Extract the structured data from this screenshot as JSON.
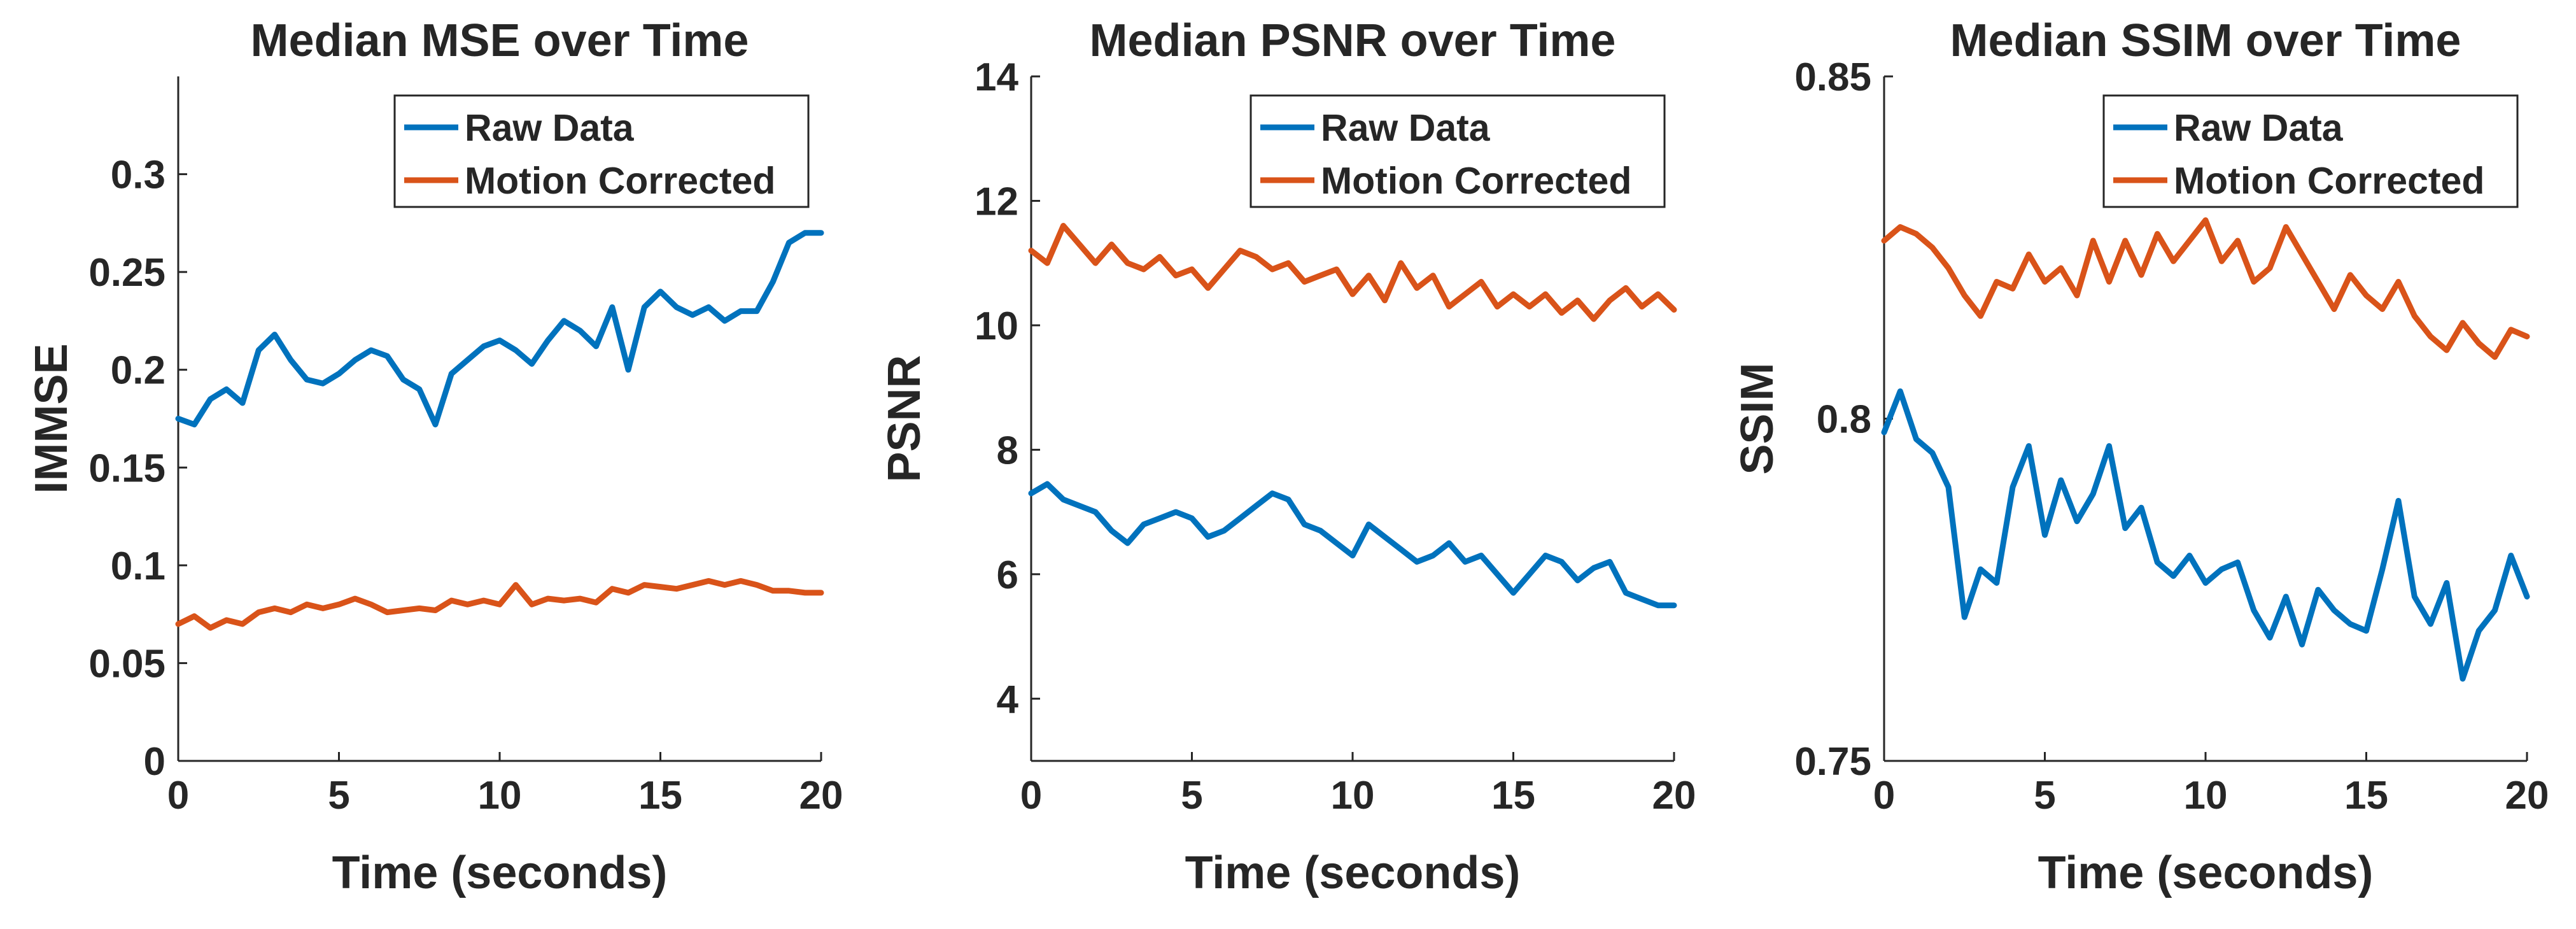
{
  "chart_data": [
    {
      "type": "line",
      "title": "Median MSE over Time",
      "xlabel": "Time (seconds)",
      "ylabel": "IMMSE",
      "xlim": [
        0,
        20
      ],
      "ylim": [
        0,
        0.35
      ],
      "xticks": [
        0,
        5,
        10,
        15,
        20
      ],
      "yticks": [
        0,
        0.05,
        0.1,
        0.15,
        0.2,
        0.25,
        0.3
      ],
      "ytick_labels": [
        "0",
        "0.05",
        "0.1",
        "0.15",
        "0.2",
        "0.25",
        "0.3"
      ],
      "legend": "top-right",
      "series": [
        {
          "name": "Raw Data",
          "color": "#0072BD",
          "x": [
            0,
            0.5,
            1,
            1.5,
            2,
            2.5,
            3,
            3.5,
            4,
            4.5,
            5,
            5.5,
            6,
            6.5,
            7,
            7.5,
            8,
            8.5,
            9,
            9.5,
            10,
            10.5,
            11,
            11.5,
            12,
            12.5,
            13,
            13.5,
            14,
            14.5,
            15,
            15.5,
            16,
            16.5,
            17,
            17.5,
            18,
            18.5,
            19,
            19.5,
            20
          ],
          "values": [
            0.175,
            0.172,
            0.185,
            0.19,
            0.183,
            0.21,
            0.218,
            0.205,
            0.195,
            0.193,
            0.198,
            0.205,
            0.21,
            0.207,
            0.195,
            0.19,
            0.172,
            0.198,
            0.205,
            0.212,
            0.215,
            0.21,
            0.203,
            0.215,
            0.225,
            0.22,
            0.212,
            0.232,
            0.2,
            0.232,
            0.24,
            0.232,
            0.228,
            0.232,
            0.225,
            0.23,
            0.23,
            0.245,
            0.265,
            0.27,
            0.27
          ]
        },
        {
          "name": "Motion Corrected",
          "color": "#D95319",
          "x": [
            0,
            0.5,
            1,
            1.5,
            2,
            2.5,
            3,
            3.5,
            4,
            4.5,
            5,
            5.5,
            6,
            6.5,
            7,
            7.5,
            8,
            8.5,
            9,
            9.5,
            10,
            10.5,
            11,
            11.5,
            12,
            12.5,
            13,
            13.5,
            14,
            14.5,
            15,
            15.5,
            16,
            16.5,
            17,
            17.5,
            18,
            18.5,
            19,
            19.5,
            20
          ],
          "values": [
            0.07,
            0.074,
            0.068,
            0.072,
            0.07,
            0.076,
            0.078,
            0.076,
            0.08,
            0.078,
            0.08,
            0.083,
            0.08,
            0.076,
            0.077,
            0.078,
            0.077,
            0.082,
            0.08,
            0.082,
            0.08,
            0.09,
            0.08,
            0.083,
            0.082,
            0.083,
            0.081,
            0.088,
            0.086,
            0.09,
            0.089,
            0.088,
            0.09,
            0.092,
            0.09,
            0.092,
            0.09,
            0.087,
            0.087,
            0.086,
            0.086
          ]
        }
      ]
    },
    {
      "type": "line",
      "title": "Median PSNR over Time",
      "xlabel": "Time (seconds)",
      "ylabel": "PSNR",
      "xlim": [
        0,
        20
      ],
      "ylim": [
        3,
        14
      ],
      "xticks": [
        0,
        5,
        10,
        15,
        20
      ],
      "yticks": [
        4,
        6,
        8,
        10,
        12,
        14
      ],
      "ytick_labels": [
        "4",
        "6",
        "8",
        "10",
        "12",
        "14"
      ],
      "legend": "top-right",
      "series": [
        {
          "name": "Raw Data",
          "color": "#0072BD",
          "x": [
            0,
            0.5,
            1,
            1.5,
            2,
            2.5,
            3,
            3.5,
            4,
            4.5,
            5,
            5.5,
            6,
            6.5,
            7,
            7.5,
            8,
            8.5,
            9,
            9.5,
            10,
            10.5,
            11,
            11.5,
            12,
            12.5,
            13,
            13.5,
            14,
            14.5,
            15,
            15.5,
            16,
            16.5,
            17,
            17.5,
            18,
            18.5,
            19,
            19.5,
            20
          ],
          "values": [
            7.3,
            7.45,
            7.2,
            7.1,
            7.0,
            6.7,
            6.5,
            6.8,
            6.9,
            7.0,
            6.9,
            6.6,
            6.7,
            6.9,
            7.1,
            7.3,
            7.2,
            6.8,
            6.7,
            6.5,
            6.3,
            6.8,
            6.6,
            6.4,
            6.2,
            6.3,
            6.5,
            6.2,
            6.3,
            6.0,
            5.7,
            6.0,
            6.3,
            6.2,
            5.9,
            6.1,
            6.2,
            5.7,
            5.6,
            5.5,
            5.5
          ]
        },
        {
          "name": "Motion Corrected",
          "color": "#D95319",
          "x": [
            0,
            0.5,
            1,
            1.5,
            2,
            2.5,
            3,
            3.5,
            4,
            4.5,
            5,
            5.5,
            6,
            6.5,
            7,
            7.5,
            8,
            8.5,
            9,
            9.5,
            10,
            10.5,
            11,
            11.5,
            12,
            12.5,
            13,
            13.5,
            14,
            14.5,
            15,
            15.5,
            16,
            16.5,
            17,
            17.5,
            18,
            18.5,
            19,
            19.5,
            20
          ],
          "values": [
            11.2,
            11.0,
            11.6,
            11.3,
            11.0,
            11.3,
            11.0,
            10.9,
            11.1,
            10.8,
            10.9,
            10.6,
            10.9,
            11.2,
            11.1,
            10.9,
            11.0,
            10.7,
            10.8,
            10.9,
            10.5,
            10.8,
            10.4,
            11.0,
            10.6,
            10.8,
            10.3,
            10.5,
            10.7,
            10.3,
            10.5,
            10.3,
            10.5,
            10.2,
            10.4,
            10.1,
            10.4,
            10.6,
            10.3,
            10.5,
            10.25
          ]
        }
      ]
    },
    {
      "type": "line",
      "title": "Median SSIM over Time",
      "xlabel": "Time (seconds)",
      "ylabel": "SSIM",
      "xlim": [
        0,
        20
      ],
      "ylim": [
        0.75,
        0.85
      ],
      "xticks": [
        0,
        5,
        10,
        15,
        20
      ],
      "yticks": [
        0.75,
        0.8,
        0.85
      ],
      "ytick_labels": [
        "0.75",
        "0.8",
        "0.85"
      ],
      "legend": "top-right",
      "series": [
        {
          "name": "Raw Data",
          "color": "#0072BD",
          "x": [
            0,
            0.5,
            1,
            1.5,
            2,
            2.5,
            3,
            3.5,
            4,
            4.5,
            5,
            5.5,
            6,
            6.5,
            7,
            7.5,
            8,
            8.5,
            9,
            9.5,
            10,
            10.5,
            11,
            11.5,
            12,
            12.5,
            13,
            13.5,
            14,
            14.5,
            15,
            15.5,
            16,
            16.5,
            17,
            17.5,
            18,
            18.5,
            19,
            19.5,
            20
          ],
          "values": [
            0.798,
            0.804,
            0.797,
            0.795,
            0.79,
            0.771,
            0.778,
            0.776,
            0.79,
            0.796,
            0.783,
            0.791,
            0.785,
            0.789,
            0.796,
            0.784,
            0.787,
            0.779,
            0.777,
            0.78,
            0.776,
            0.778,
            0.779,
            0.772,
            0.768,
            0.774,
            0.767,
            0.775,
            0.772,
            0.77,
            0.769,
            0.778,
            0.788,
            0.774,
            0.77,
            0.776,
            0.762,
            0.769,
            0.772,
            0.78,
            0.774
          ]
        },
        {
          "name": "Motion Corrected",
          "color": "#D95319",
          "x": [
            0,
            0.5,
            1,
            1.5,
            2,
            2.5,
            3,
            3.5,
            4,
            4.5,
            5,
            5.5,
            6,
            6.5,
            7,
            7.5,
            8,
            8.5,
            9,
            9.5,
            10,
            10.5,
            11,
            11.5,
            12,
            12.5,
            13,
            13.5,
            14,
            14.5,
            15,
            15.5,
            16,
            16.5,
            17,
            17.5,
            18,
            18.5,
            19,
            19.5,
            20
          ],
          "values": [
            0.826,
            0.828,
            0.827,
            0.825,
            0.822,
            0.818,
            0.815,
            0.82,
            0.819,
            0.824,
            0.82,
            0.822,
            0.818,
            0.826,
            0.82,
            0.826,
            0.821,
            0.827,
            0.823,
            0.826,
            0.829,
            0.823,
            0.826,
            0.82,
            0.822,
            0.828,
            0.824,
            0.82,
            0.816,
            0.821,
            0.818,
            0.816,
            0.82,
            0.815,
            0.812,
            0.81,
            0.814,
            0.811,
            0.809,
            0.813,
            0.812
          ]
        }
      ]
    }
  ]
}
